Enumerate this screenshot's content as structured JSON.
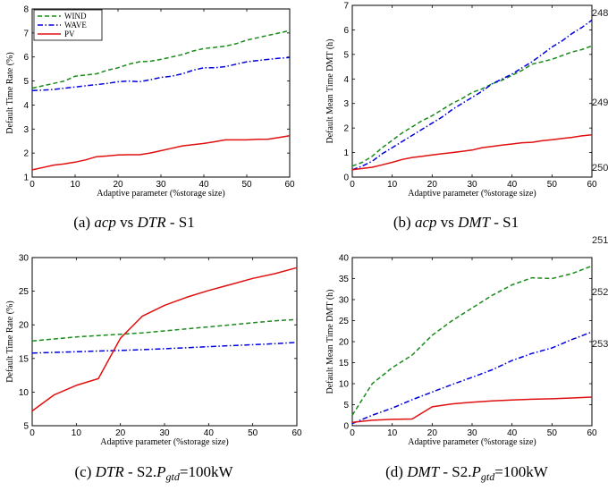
{
  "figure": {
    "side_numbers": [
      "248",
      "249",
      "250",
      "251",
      "252",
      "253"
    ]
  },
  "colors": {
    "WIND": "#1a8a1a",
    "WAVE": "#0000dd",
    "PV": "#e01010"
  },
  "line_styles": {
    "WIND": "dashed",
    "WAVE": "dash-dot",
    "PV": "solid"
  },
  "chart_data": [
    {
      "id": "a",
      "type": "line",
      "caption": "(a) acp vs DTR - S1",
      "xlabel": "Adaptive parameter (%storage size)",
      "ylabel": "Default Time Rate (%)",
      "xlim": [
        0,
        60
      ],
      "ylim": [
        1,
        8
      ],
      "xticks": [
        0,
        10,
        20,
        30,
        40,
        50,
        60
      ],
      "yticks": [
        1,
        2,
        3,
        4,
        5,
        6,
        7,
        8
      ],
      "legend": "top-left",
      "grid": false,
      "x": [
        0,
        2.5,
        5,
        7.5,
        10,
        12.5,
        15,
        17.5,
        20,
        22.5,
        25,
        27.5,
        30,
        32.5,
        35,
        37.5,
        40,
        42.5,
        45,
        47.5,
        50,
        52.5,
        55,
        57.5,
        60
      ],
      "series": [
        {
          "name": "WIND",
          "values": [
            4.7,
            4.8,
            4.9,
            5.0,
            5.2,
            5.25,
            5.3,
            5.45,
            5.55,
            5.7,
            5.8,
            5.82,
            5.9,
            6.0,
            6.1,
            6.25,
            6.35,
            6.4,
            6.45,
            6.55,
            6.7,
            6.8,
            6.9,
            7.0,
            7.1
          ]
        },
        {
          "name": "WAVE",
          "values": [
            4.6,
            4.62,
            4.65,
            4.7,
            4.75,
            4.8,
            4.85,
            4.9,
            4.97,
            5.0,
            4.97,
            5.05,
            5.15,
            5.2,
            5.3,
            5.45,
            5.55,
            5.55,
            5.6,
            5.7,
            5.8,
            5.85,
            5.9,
            5.95,
            5.98
          ]
        },
        {
          "name": "PV",
          "values": [
            1.3,
            1.4,
            1.5,
            1.55,
            1.62,
            1.72,
            1.85,
            1.88,
            1.92,
            1.93,
            1.93,
            2.0,
            2.1,
            2.2,
            2.3,
            2.35,
            2.4,
            2.47,
            2.55,
            2.55,
            2.55,
            2.57,
            2.58,
            2.65,
            2.72
          ]
        }
      ]
    },
    {
      "id": "b",
      "type": "line",
      "caption": "(b) acp vs DMT - S1",
      "xlabel": "Adaptive parameter (%storage size)",
      "ylabel": "Default Mean Time DMT (h)",
      "xlim": [
        0,
        60
      ],
      "ylim": [
        0,
        7
      ],
      "xticks": [
        0,
        10,
        20,
        30,
        40,
        50,
        60
      ],
      "yticks": [
        0,
        1,
        2,
        3,
        4,
        5,
        6,
        7
      ],
      "legend": "none",
      "grid": false,
      "x": [
        0,
        2.5,
        5,
        7.5,
        10,
        12.5,
        15,
        17.5,
        20,
        22.5,
        25,
        27.5,
        30,
        32.5,
        35,
        37.5,
        40,
        42.5,
        45,
        47.5,
        50,
        52.5,
        55,
        57.5,
        60
      ],
      "series": [
        {
          "name": "WIND",
          "values": [
            0.45,
            0.6,
            0.85,
            1.2,
            1.5,
            1.8,
            2.05,
            2.3,
            2.5,
            2.75,
            3.0,
            3.2,
            3.45,
            3.6,
            3.8,
            3.95,
            4.15,
            4.35,
            4.6,
            4.7,
            4.8,
            4.95,
            5.1,
            5.2,
            5.35
          ]
        },
        {
          "name": "WAVE",
          "values": [
            0.3,
            0.45,
            0.65,
            0.95,
            1.2,
            1.45,
            1.7,
            1.95,
            2.2,
            2.45,
            2.75,
            3.0,
            3.25,
            3.5,
            3.8,
            4.0,
            4.2,
            4.45,
            4.7,
            5.0,
            5.3,
            5.55,
            5.85,
            6.1,
            6.4
          ]
        },
        {
          "name": "PV",
          "values": [
            0.3,
            0.35,
            0.4,
            0.5,
            0.6,
            0.72,
            0.8,
            0.85,
            0.9,
            0.95,
            1.0,
            1.05,
            1.1,
            1.2,
            1.25,
            1.3,
            1.35,
            1.4,
            1.42,
            1.48,
            1.52,
            1.57,
            1.62,
            1.68,
            1.72
          ]
        }
      ]
    },
    {
      "id": "c",
      "type": "line",
      "caption": "(c) DTR - S2.Pgtd=100kW",
      "xlabel": "Adaptive parameter (%storage size)",
      "ylabel": "Default Time Rate (%)",
      "xlim": [
        0,
        60
      ],
      "ylim": [
        5,
        30
      ],
      "xticks": [
        0,
        10,
        20,
        30,
        40,
        50,
        60
      ],
      "yticks": [
        5,
        10,
        15,
        20,
        25,
        30
      ],
      "legend": "none",
      "grid": false,
      "x": [
        0,
        5,
        10,
        15,
        20,
        25,
        30,
        35,
        40,
        45,
        50,
        55,
        60
      ],
      "series": [
        {
          "name": "WIND",
          "values": [
            17.6,
            17.9,
            18.2,
            18.4,
            18.6,
            18.8,
            19.1,
            19.4,
            19.7,
            20.0,
            20.3,
            20.6,
            20.8
          ]
        },
        {
          "name": "WAVE",
          "values": [
            15.8,
            15.9,
            16.0,
            16.1,
            16.2,
            16.3,
            16.45,
            16.6,
            16.75,
            16.9,
            17.05,
            17.2,
            17.4
          ]
        },
        {
          "name": "PV",
          "values": [
            7.2,
            9.6,
            11.0,
            12.0,
            18.0,
            21.3,
            22.9,
            24.1,
            25.1,
            26.0,
            26.9,
            27.6,
            28.5
          ]
        }
      ]
    },
    {
      "id": "d",
      "type": "line",
      "caption": "(d) DMT - S2.Pgtd=100kW",
      "xlabel": "Adaptive parameter (%storage size)",
      "ylabel": "Default Mean Time DMT (h)",
      "xlim": [
        0,
        60
      ],
      "ylim": [
        0,
        40
      ],
      "xticks": [
        0,
        10,
        20,
        30,
        40,
        50,
        60
      ],
      "yticks": [
        0,
        5,
        10,
        15,
        20,
        25,
        30,
        35,
        40
      ],
      "legend": "none",
      "grid": false,
      "x": [
        0,
        5,
        10,
        15,
        20,
        25,
        30,
        35,
        40,
        45,
        50,
        55,
        60
      ],
      "series": [
        {
          "name": "WIND",
          "values": [
            2.5,
            10.0,
            13.8,
            16.8,
            21.5,
            25.0,
            28.0,
            31.0,
            33.5,
            35.2,
            35.0,
            36.2,
            38.0
          ]
        },
        {
          "name": "WAVE",
          "values": [
            0.5,
            2.5,
            4.2,
            6.2,
            8.0,
            9.8,
            11.5,
            13.3,
            15.5,
            17.2,
            18.5,
            20.5,
            22.3
          ]
        },
        {
          "name": "PV",
          "values": [
            0.8,
            1.3,
            1.5,
            1.6,
            4.5,
            5.2,
            5.6,
            5.9,
            6.1,
            6.3,
            6.4,
            6.6,
            6.8
          ]
        }
      ]
    }
  ]
}
